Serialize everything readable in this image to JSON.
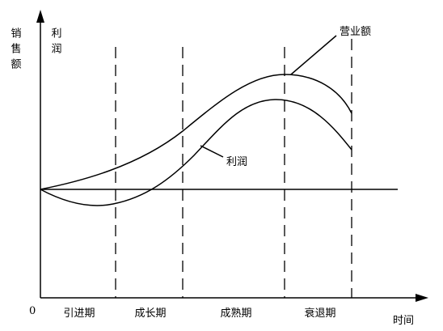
{
  "axes": {
    "y_label": "销售额",
    "y_label_2": "利润",
    "origin": "0",
    "x_label": "时间"
  },
  "stages": [
    "引进期",
    "成长期",
    "成熟期",
    "衰退期"
  ],
  "curves": {
    "sales": "营业额",
    "profit": "利润"
  }
}
